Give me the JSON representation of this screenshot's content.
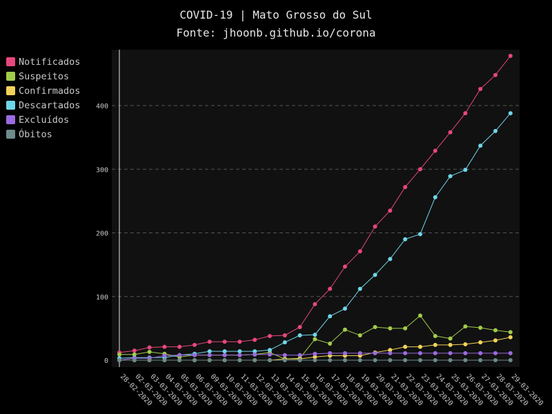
{
  "title": {
    "line1": "COVID-19 | Mato Grosso do Sul",
    "line2": "Fonte: jhoonb.github.io/corona"
  },
  "colors": {
    "background": "#000000",
    "plot_background": "#111111",
    "grid": "#555555",
    "text": "#c8c8c8"
  },
  "chart_data": {
    "type": "line",
    "title": "COVID-19 | Mato Grosso do Sul",
    "subtitle": "Fonte: jhoonb.github.io/corona",
    "xlabel": "",
    "ylabel": "",
    "grid": "horizontal dashed",
    "legend_placement": "left",
    "ylim": [
      0,
      480
    ],
    "yticks": [
      0,
      100,
      200,
      300,
      400
    ],
    "x": [
      "28-02-2020",
      "02-03-2020",
      "03-03-2020",
      "04-03-2020",
      "05-03-2020",
      "06-03-2020",
      "09-03-2020",
      "10-03-2020",
      "11-03-2020",
      "12-03-2020",
      "13-03-2020",
      "14-03-2020",
      "15-03-2020",
      "16-03-2020",
      "17-03-2020",
      "18-03-2020",
      "19-03-2020",
      "20-03-2020",
      "21-03-2020",
      "22-03-2020",
      "23-03-2020",
      "24-03-2020",
      "25-03-2020",
      "26-03-2020",
      "27-03-2020",
      "28-03-2020",
      "29-03-2020"
    ],
    "series": [
      {
        "name": "Notificados",
        "color": "#e8477e",
        "values": [
          12,
          15,
          20,
          21,
          21,
          24,
          29,
          29,
          29,
          32,
          38,
          39,
          52,
          88,
          112,
          147,
          171,
          210,
          235,
          272,
          300,
          329,
          358,
          388,
          426,
          448,
          478
        ]
      },
      {
        "name": "Suspeitos",
        "color": "#a3cc4a",
        "values": [
          9,
          9,
          13,
          10,
          5,
          8,
          8,
          8,
          8,
          9,
          12,
          2,
          3,
          33,
          26,
          48,
          39,
          52,
          50,
          50,
          70,
          38,
          34,
          53,
          51,
          47,
          44
        ]
      },
      {
        "name": "Confirmados",
        "color": "#f2d35a",
        "values": [
          0,
          0,
          0,
          0,
          0,
          0,
          0,
          0,
          0,
          0,
          0,
          2,
          2,
          5,
          7,
          7,
          7,
          12,
          16,
          21,
          21,
          24,
          24,
          25,
          28,
          31,
          36
        ]
      },
      {
        "name": "Descartados",
        "color": "#6fd6e8",
        "values": [
          3,
          4,
          4,
          4,
          8,
          10,
          14,
          14,
          14,
          14,
          16,
          28,
          39,
          40,
          69,
          81,
          112,
          134,
          159,
          190,
          198,
          256,
          289,
          299,
          337,
          360,
          388
        ]
      },
      {
        "name": "Excluídos",
        "color": "#9b6be0",
        "values": [
          0,
          3,
          3,
          7,
          8,
          8,
          8,
          8,
          8,
          9,
          9,
          8,
          8,
          10,
          11,
          11,
          11,
          11,
          11,
          11,
          11,
          11,
          11,
          11,
          11,
          11,
          11
        ]
      },
      {
        "name": "Óbitos",
        "color": "#6e8a8a",
        "values": [
          0,
          0,
          0,
          0,
          0,
          0,
          0,
          0,
          0,
          0,
          0,
          0,
          0,
          0,
          0,
          0,
          0,
          0,
          0,
          0,
          0,
          0,
          0,
          0,
          0,
          0,
          0
        ]
      }
    ]
  }
}
